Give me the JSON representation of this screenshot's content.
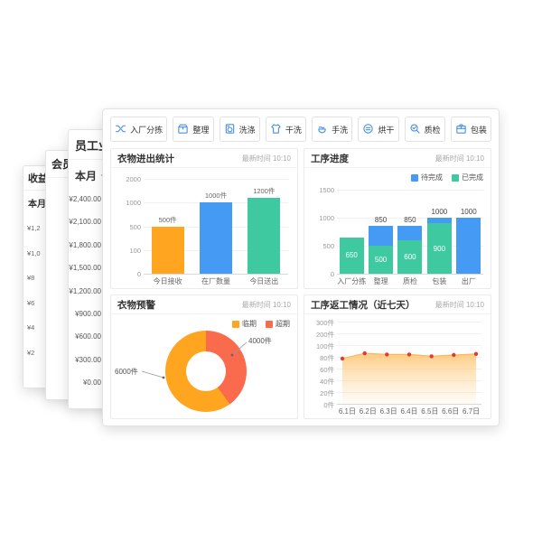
{
  "colors": {
    "accent_blue": "#4a90e2",
    "bar_orange": "#FFA51F",
    "bar_blue": "#459BF4",
    "bar_green": "#3FC9A1",
    "slice_red": "#FA6A4C",
    "dot_red": "#E23B32",
    "area_line": "#FFB55E"
  },
  "background_windows": [
    {
      "title": "收益",
      "period": "本月",
      "axis_values": [
        "¥1,2",
        "¥1,0",
        "¥8",
        "¥6",
        "¥4",
        "¥2"
      ]
    },
    {
      "title": "会员"
    },
    {
      "title": "员工业绩",
      "period": "本月",
      "axis_values": [
        "¥2,400.00",
        "¥2,100.00",
        "¥1,800.00",
        "¥1,500.00",
        "¥1,200.00",
        "¥900.00",
        "¥600.00",
        "¥300.00",
        "¥0.00"
      ]
    }
  ],
  "toolbar": {
    "buttons": [
      {
        "label": "入厂分拣",
        "icon": "shuffle-icon"
      },
      {
        "label": "整理",
        "icon": "box-icon"
      },
      {
        "label": "洗涤",
        "icon": "washer-icon"
      },
      {
        "label": "干洗",
        "icon": "shirt-icon"
      },
      {
        "label": "手洗",
        "icon": "hand-wash-icon"
      },
      {
        "label": "烘干",
        "icon": "dryer-icon"
      },
      {
        "label": "质检",
        "icon": "inspect-icon"
      },
      {
        "label": "包装",
        "icon": "package-icon"
      }
    ]
  },
  "cards": {
    "in_out": {
      "title": "衣物进出统计",
      "timestamp": "最新时间 10:10"
    },
    "progress": {
      "title": "工序进度",
      "timestamp": "最新时间 10:10",
      "legend": [
        {
          "label": "待完成",
          "color": "#459BF4"
        },
        {
          "label": "已完成",
          "color": "#3FC9A1"
        }
      ]
    },
    "warning": {
      "title": "衣物预警",
      "timestamp": "最新时间 10:10",
      "legend": [
        {
          "label": "临期",
          "color": "#FFA51F"
        },
        {
          "label": "超期",
          "color": "#FA6A4C"
        }
      ]
    },
    "rework": {
      "title": "工序返工情况（近七天）",
      "timestamp": "最新时间 10:10"
    }
  },
  "chart_data": [
    {
      "id": "in_out",
      "type": "bar",
      "title": "衣物进出统计",
      "categories": [
        "今日接收",
        "在厂数量",
        "今日送出"
      ],
      "values": [
        500,
        1000,
        1200
      ],
      "data_labels": [
        "500件",
        "1000件",
        "1200件"
      ],
      "bar_colors": [
        "#FFA51F",
        "#459BF4",
        "#3FC9A1"
      ],
      "y_ticks": [
        2000,
        1000,
        500,
        100,
        0
      ],
      "grid": true,
      "legend_position": "none"
    },
    {
      "id": "progress",
      "type": "bar",
      "title": "工序进度",
      "categories": [
        "入厂分拣",
        "整理",
        "质检",
        "包装",
        "出厂"
      ],
      "series": [
        {
          "name": "已完成",
          "color": "#3FC9A1",
          "values": [
            650,
            500,
            600,
            900,
            0
          ]
        },
        {
          "name": "待完成",
          "color": "#459BF4",
          "values": [
            0,
            350,
            250,
            100,
            1000
          ]
        }
      ],
      "totals": [
        null,
        850,
        850,
        1000,
        1000
      ],
      "inner_labels": [
        650,
        500,
        600,
        900,
        null
      ],
      "y_ticks": [
        1500,
        1000,
        500,
        0
      ],
      "grid": true,
      "legend_position": "top-right"
    },
    {
      "id": "warning",
      "type": "pie",
      "donut": true,
      "title": "衣物预警",
      "slices": [
        {
          "label": "临期",
          "value": 6000,
          "display": "6000件",
          "color": "#FFA51F"
        },
        {
          "label": "超期",
          "value": 4000,
          "display": "4000件",
          "color": "#FA6A4C"
        }
      ],
      "legend_position": "top-right"
    },
    {
      "id": "rework",
      "type": "area",
      "title": "工序返工情况（近七天）",
      "x": [
        "6.1日",
        "6.2日",
        "6.3日",
        "6.4日",
        "6.5日",
        "6.6日",
        "6.7日"
      ],
      "values": [
        77,
        86,
        84,
        84,
        81,
        83,
        85
      ],
      "y_tick_labels": [
        "300件",
        "200件",
        "100件",
        "80件",
        "60件",
        "40件",
        "20件",
        "0件"
      ],
      "y_tick_values": [
        300,
        200,
        100,
        80,
        60,
        40,
        20,
        0
      ],
      "line_color": "#FFB55E",
      "point_color": "#E23B32",
      "grid": true,
      "legend_position": "none"
    }
  ]
}
